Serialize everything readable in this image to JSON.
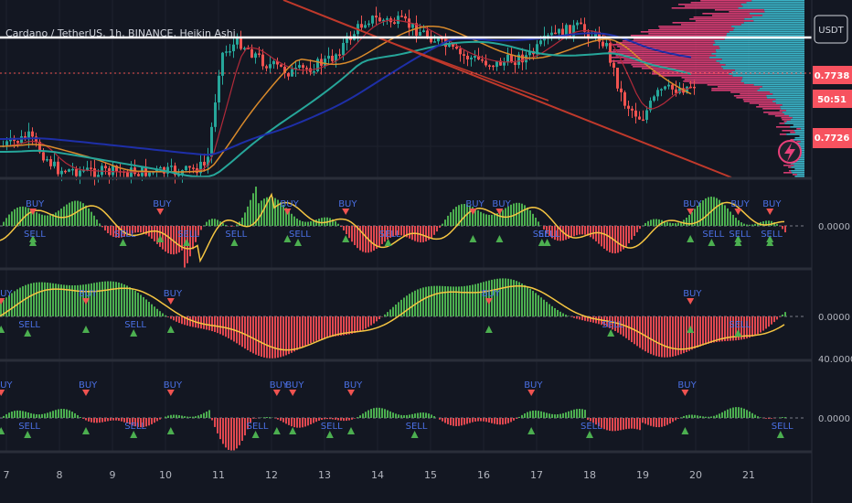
{
  "symbol_label": "Cardano / TetherUS, 1h, BINANCE, Heikin Ashi",
  "currency_label": "USDT",
  "price_badges": [
    {
      "text": "0.7738",
      "kind": "price"
    },
    {
      "text": "50:51",
      "kind": "timer"
    },
    {
      "text": "0.7726",
      "kind": "price"
    }
  ],
  "pane_values": [
    {
      "pane": 1,
      "text": "0.0000"
    },
    {
      "pane": 2,
      "text": "0.0000"
    },
    {
      "pane": 3,
      "text": "40.0000"
    },
    {
      "pane": 3,
      "text": "0.0000"
    }
  ],
  "x_axis_labels": [
    "7",
    "8",
    "9",
    "10",
    "11",
    "12",
    "13",
    "14",
    "15",
    "16",
    "17",
    "18",
    "19",
    "20",
    "21"
  ],
  "signal_texts": {
    "buy": "BUY",
    "sell": "SELL"
  },
  "colors": {
    "background": "#131722",
    "bull": "#26a69a",
    "bear": "#ef5350",
    "hist_up": "#4caf50",
    "hist_down": "#e04850",
    "signal_line": "#f5c542",
    "label_blue": "#4a6fe3",
    "volume_profile_pink": "#e9407a",
    "volume_profile_cyan": "#3fc4d9",
    "trendline": "#c0392b"
  },
  "chart_data": [
    {
      "type": "candlestick",
      "title": "Cardano / TetherUS, 1h, BINANCE, Heikin Ashi",
      "x_ticks": [
        "7",
        "8",
        "9",
        "10",
        "11",
        "12",
        "13",
        "14",
        "15",
        "16",
        "17",
        "18",
        "19",
        "20",
        "21"
      ],
      "last_price": 0.7738,
      "prev_price": 0.7726,
      "overlays": [
        "moving averages (red, orange, teal, dark blue)",
        "descending trendline",
        "volume profile"
      ]
    },
    {
      "type": "bar",
      "series": [
        {
          "name": "histogram"
        },
        {
          "name": "signal"
        }
      ],
      "zero_label": "0.0000",
      "signals": [
        {
          "day": 7.5,
          "type": "BUY"
        },
        {
          "day": 7.5,
          "type": "SELL"
        },
        {
          "day": 9.2,
          "type": "SELL"
        },
        {
          "day": 9.9,
          "type": "BUY"
        },
        {
          "day": 10.4,
          "type": "SELL"
        },
        {
          "day": 11.3,
          "type": "SELL"
        },
        {
          "day": 12.3,
          "type": "BUY"
        },
        {
          "day": 12.5,
          "type": "SELL"
        },
        {
          "day": 13.4,
          "type": "BUY"
        },
        {
          "day": 14.2,
          "type": "SELL"
        },
        {
          "day": 15.8,
          "type": "BUY"
        },
        {
          "day": 16.3,
          "type": "BUY"
        },
        {
          "day": 17.1,
          "type": "SELL"
        },
        {
          "day": 17.2,
          "type": "SELL"
        },
        {
          "day": 19.9,
          "type": "BUY"
        },
        {
          "day": 20.3,
          "type": "SELL"
        },
        {
          "day": 20.8,
          "type": "BUY"
        },
        {
          "day": 20.8,
          "type": "SELL"
        },
        {
          "day": 21.4,
          "type": "BUY"
        },
        {
          "day": 21.4,
          "type": "SELL"
        }
      ]
    },
    {
      "type": "bar",
      "series": [
        {
          "name": "histogram"
        },
        {
          "name": "signal"
        }
      ],
      "zero_label": "0.0000",
      "signals": [
        {
          "day": 6.9,
          "type": "BUY"
        },
        {
          "day": 7.4,
          "type": "SELL"
        },
        {
          "day": 8.5,
          "type": "BUY"
        },
        {
          "day": 9.4,
          "type": "SELL"
        },
        {
          "day": 10.1,
          "type": "BUY"
        },
        {
          "day": 16.1,
          "type": "BUY"
        },
        {
          "day": 18.4,
          "type": "SELL"
        },
        {
          "day": 19.9,
          "type": "BUY"
        },
        {
          "day": 20.8,
          "type": "SELL"
        }
      ]
    },
    {
      "type": "bar",
      "series": [
        {
          "name": "histogram"
        }
      ],
      "top_label": "40.0000",
      "zero_label": "0.0000",
      "signals": [
        {
          "day": 6.9,
          "type": "BUY"
        },
        {
          "day": 7.4,
          "type": "SELL"
        },
        {
          "day": 8.5,
          "type": "BUY"
        },
        {
          "day": 9.4,
          "type": "SELL"
        },
        {
          "day": 10.1,
          "type": "BUY"
        },
        {
          "day": 11.7,
          "type": "SELL"
        },
        {
          "day": 12.1,
          "type": "BUY"
        },
        {
          "day": 12.4,
          "type": "BUY"
        },
        {
          "day": 13.1,
          "type": "SELL"
        },
        {
          "day": 13.5,
          "type": "BUY"
        },
        {
          "day": 14.7,
          "type": "SELL"
        },
        {
          "day": 16.9,
          "type": "BUY"
        },
        {
          "day": 18.0,
          "type": "SELL"
        },
        {
          "day": 19.8,
          "type": "BUY"
        },
        {
          "day": 21.6,
          "type": "SELL"
        }
      ]
    }
  ]
}
